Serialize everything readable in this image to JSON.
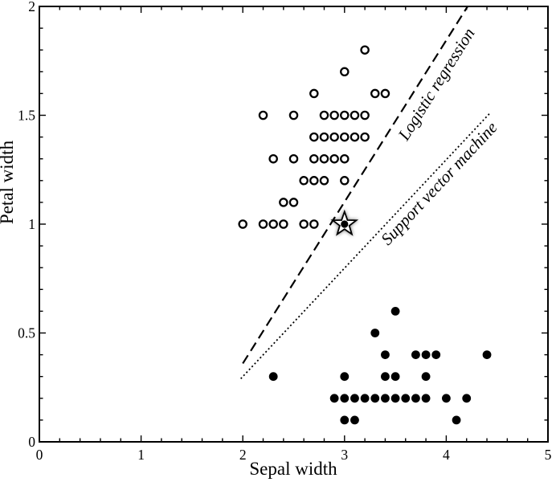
{
  "colors": {
    "foreground": "#000000",
    "background": "#ffffff",
    "star_shadow": "#8a8a8a"
  },
  "chart_data": {
    "type": "scatter",
    "title": "",
    "xlabel": "Sepal width",
    "ylabel": "Petal width",
    "xlim": [
      0,
      5
    ],
    "ylim": [
      0,
      2
    ],
    "grid": false,
    "x_ticks": [
      {
        "value": 0,
        "label": "0"
      },
      {
        "value": 1,
        "label": "1"
      },
      {
        "value": 2,
        "label": "2"
      },
      {
        "value": 3,
        "label": "3"
      },
      {
        "value": 4,
        "label": "4"
      },
      {
        "value": 5,
        "label": "5"
      }
    ],
    "y_ticks": [
      {
        "value": 0,
        "label": "0"
      },
      {
        "value": 0.5,
        "label": "0.5"
      },
      {
        "value": 1,
        "label": "1"
      },
      {
        "value": 1.5,
        "label": "1.5"
      },
      {
        "value": 2,
        "label": "2"
      }
    ],
    "x_minor_tick_step": 0.2,
    "y_minor_tick_step": 0.1,
    "series": [
      {
        "name": "open-circle-class",
        "marker": "open-circle",
        "points": [
          [
            3.2,
            1.8
          ],
          [
            3.0,
            1.7
          ],
          [
            2.7,
            1.6
          ],
          [
            3.3,
            1.6
          ],
          [
            3.4,
            1.6
          ],
          [
            2.2,
            1.5
          ],
          [
            2.5,
            1.5
          ],
          [
            2.8,
            1.5
          ],
          [
            2.9,
            1.5
          ],
          [
            3.0,
            1.5
          ],
          [
            3.1,
            1.5
          ],
          [
            3.2,
            1.5
          ],
          [
            2.7,
            1.4
          ],
          [
            2.8,
            1.4
          ],
          [
            2.9,
            1.4
          ],
          [
            3.0,
            1.4
          ],
          [
            3.1,
            1.4
          ],
          [
            3.2,
            1.4
          ],
          [
            2.3,
            1.3
          ],
          [
            2.5,
            1.3
          ],
          [
            2.7,
            1.3
          ],
          [
            2.8,
            1.3
          ],
          [
            2.9,
            1.3
          ],
          [
            3.0,
            1.3
          ],
          [
            2.6,
            1.2
          ],
          [
            2.7,
            1.2
          ],
          [
            2.8,
            1.2
          ],
          [
            3.0,
            1.2
          ],
          [
            2.4,
            1.1
          ],
          [
            2.5,
            1.1
          ],
          [
            2.0,
            1.0
          ],
          [
            2.2,
            1.0
          ],
          [
            2.3,
            1.0
          ],
          [
            2.4,
            1.0
          ],
          [
            2.6,
            1.0
          ],
          [
            2.7,
            1.0
          ]
        ]
      },
      {
        "name": "filled-circle-class",
        "marker": "filled-circle",
        "points": [
          [
            3.5,
            0.6
          ],
          [
            3.3,
            0.5
          ],
          [
            3.4,
            0.4
          ],
          [
            3.7,
            0.4
          ],
          [
            3.8,
            0.4
          ],
          [
            3.9,
            0.4
          ],
          [
            4.4,
            0.4
          ],
          [
            2.3,
            0.3
          ],
          [
            3.0,
            0.3
          ],
          [
            3.4,
            0.3
          ],
          [
            3.5,
            0.3
          ],
          [
            3.8,
            0.3
          ],
          [
            2.9,
            0.2
          ],
          [
            3.0,
            0.2
          ],
          [
            3.1,
            0.2
          ],
          [
            3.2,
            0.2
          ],
          [
            3.3,
            0.2
          ],
          [
            3.4,
            0.2
          ],
          [
            3.5,
            0.2
          ],
          [
            3.6,
            0.2
          ],
          [
            3.7,
            0.2
          ],
          [
            3.8,
            0.2
          ],
          [
            4.0,
            0.2
          ],
          [
            4.2,
            0.2
          ],
          [
            3.0,
            0.1
          ],
          [
            3.1,
            0.1
          ],
          [
            4.1,
            0.1
          ]
        ]
      }
    ],
    "query_point": {
      "x": 3.0,
      "y": 1.0,
      "marker": "star"
    },
    "boundaries": [
      {
        "label": "Logistic regression",
        "style": "dashed",
        "from": [
          2.0,
          0.36
        ],
        "to": [
          4.21,
          2.0
        ],
        "label_anchor": [
          3.95,
          1.63
        ],
        "label_rotation_deg": -58
      },
      {
        "label": "Support vector machine",
        "style": "dotted",
        "from": [
          1.98,
          0.29
        ],
        "to": [
          4.43,
          1.51
        ],
        "label_anchor": [
          3.97,
          1.17
        ],
        "label_rotation_deg": -47
      }
    ],
    "legend": null
  }
}
